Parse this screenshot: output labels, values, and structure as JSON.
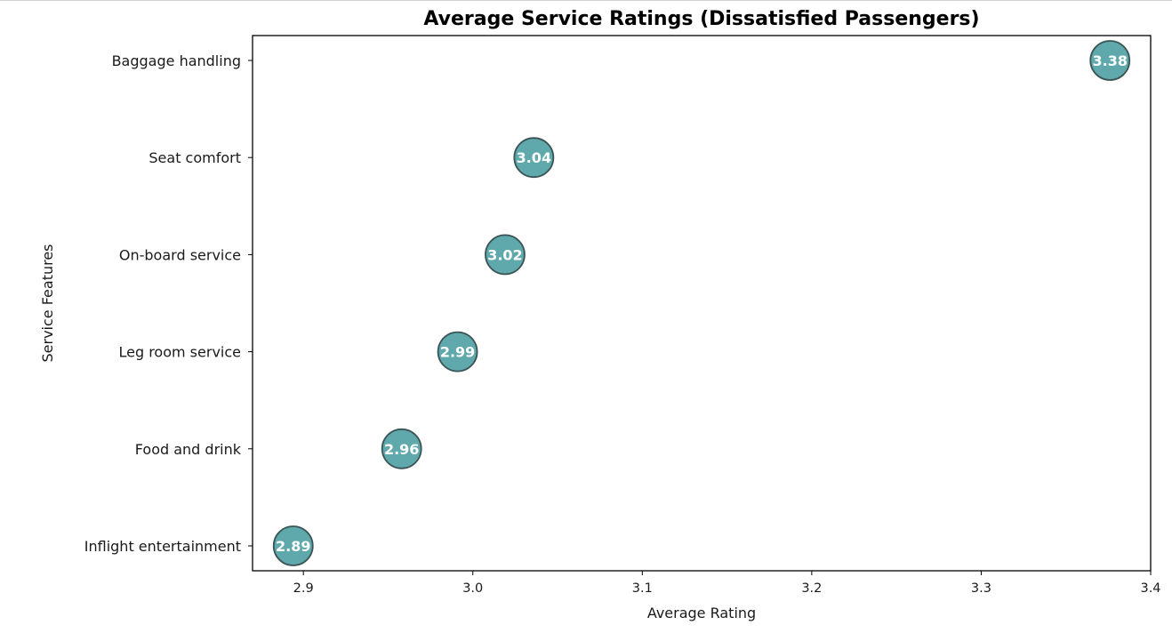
{
  "chart_data": {
    "type": "scatter",
    "title": "Average Service Ratings (Dissatisfied Passengers)",
    "xlabel": "Average Rating",
    "ylabel": "Service Features",
    "xlim": [
      2.87,
      3.4
    ],
    "xticks": [
      "2.9",
      "3.0",
      "3.1",
      "3.2",
      "3.3",
      "3.4"
    ],
    "categories": [
      "Inflight entertainment",
      "Food and drink",
      "Leg room service",
      "On-board service",
      "Seat comfort",
      "Baggage handling"
    ],
    "values": [
      2.894,
      2.958,
      2.991,
      3.019,
      3.036,
      3.376
    ],
    "data_labels": [
      "2.89",
      "2.96",
      "2.99",
      "3.02",
      "3.04",
      "3.38"
    ],
    "marker_color": "#5fa9ac",
    "marker_edge_color": "#3b5557",
    "grid": false,
    "legend": "none"
  }
}
